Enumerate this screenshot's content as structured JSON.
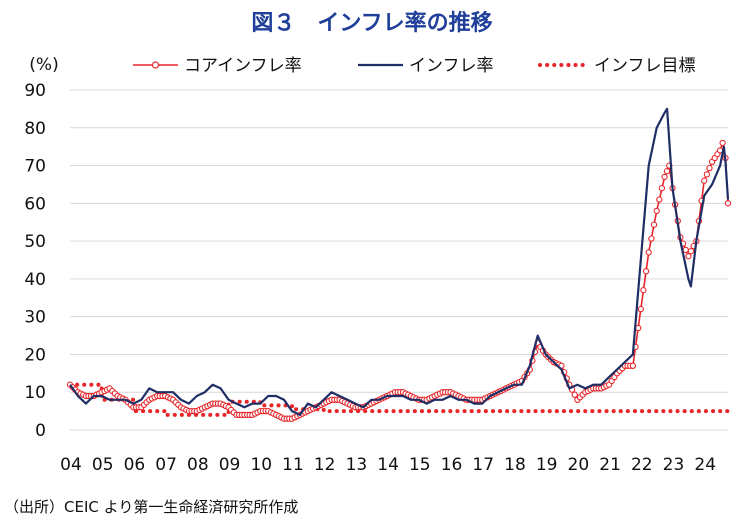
{
  "chart_data": {
    "type": "line",
    "title": "図３　インフレ率の推移",
    "ylabel": "(%)",
    "xlabel": "",
    "ylim": [
      0,
      90
    ],
    "yticks": [
      0,
      10,
      20,
      30,
      40,
      50,
      60,
      70,
      80,
      90
    ],
    "xlim": [
      2004,
      2024.75
    ],
    "xticks": [
      {
        "label": "04",
        "x": 2004
      },
      {
        "label": "05",
        "x": 2005
      },
      {
        "label": "06",
        "x": 2006
      },
      {
        "label": "07",
        "x": 2007
      },
      {
        "label": "08",
        "x": 2008
      },
      {
        "label": "09",
        "x": 2009
      },
      {
        "label": "10",
        "x": 2010
      },
      {
        "label": "11",
        "x": 2011
      },
      {
        "label": "12",
        "x": 2012
      },
      {
        "label": "13",
        "x": 2013
      },
      {
        "label": "14",
        "x": 2014
      },
      {
        "label": "15",
        "x": 2015
      },
      {
        "label": "16",
        "x": 2016
      },
      {
        "label": "17",
        "x": 2017
      },
      {
        "label": "18",
        "x": 2018
      },
      {
        "label": "19",
        "x": 2019
      },
      {
        "label": "20",
        "x": 2020
      },
      {
        "label": "21",
        "x": 2021
      },
      {
        "label": "22",
        "x": 2022
      },
      {
        "label": "23",
        "x": 2023
      },
      {
        "label": "24",
        "x": 2024
      }
    ],
    "grid": "horizontal",
    "legend_position": "top-right",
    "source": "（出所）CEIC より第一生命経済研究所作成",
    "series": [
      {
        "name": "コアインフレ率",
        "color": "#e8262a",
        "style": "line-with-circle-markers",
        "points": [
          [
            2004.0,
            12
          ],
          [
            2004.25,
            10
          ],
          [
            2004.5,
            9
          ],
          [
            2004.75,
            9
          ],
          [
            2005.0,
            10
          ],
          [
            2005.25,
            11
          ],
          [
            2005.5,
            9
          ],
          [
            2005.75,
            8
          ],
          [
            2006.0,
            6
          ],
          [
            2006.25,
            6
          ],
          [
            2006.5,
            8
          ],
          [
            2006.75,
            9
          ],
          [
            2007.0,
            9
          ],
          [
            2007.25,
            8
          ],
          [
            2007.5,
            6
          ],
          [
            2007.75,
            5
          ],
          [
            2008.0,
            5
          ],
          [
            2008.25,
            6
          ],
          [
            2008.5,
            7
          ],
          [
            2008.75,
            7
          ],
          [
            2009.0,
            6
          ],
          [
            2009.25,
            4
          ],
          [
            2009.5,
            4
          ],
          [
            2009.75,
            4
          ],
          [
            2010.0,
            5
          ],
          [
            2010.25,
            5
          ],
          [
            2010.5,
            4
          ],
          [
            2010.75,
            3
          ],
          [
            2011.0,
            3
          ],
          [
            2011.25,
            4
          ],
          [
            2011.5,
            5
          ],
          [
            2011.75,
            6
          ],
          [
            2012.0,
            7
          ],
          [
            2012.25,
            8
          ],
          [
            2012.5,
            8
          ],
          [
            2012.75,
            7
          ],
          [
            2013.0,
            6
          ],
          [
            2013.25,
            6
          ],
          [
            2013.5,
            7
          ],
          [
            2013.75,
            8
          ],
          [
            2014.0,
            9
          ],
          [
            2014.25,
            10
          ],
          [
            2014.5,
            10
          ],
          [
            2014.75,
            9
          ],
          [
            2015.0,
            8
          ],
          [
            2015.25,
            8
          ],
          [
            2015.5,
            9
          ],
          [
            2015.75,
            10
          ],
          [
            2016.0,
            10
          ],
          [
            2016.25,
            9
          ],
          [
            2016.5,
            8
          ],
          [
            2016.75,
            8
          ],
          [
            2017.0,
            8
          ],
          [
            2017.25,
            9
          ],
          [
            2017.5,
            10
          ],
          [
            2017.75,
            11
          ],
          [
            2018.0,
            12
          ],
          [
            2018.25,
            13
          ],
          [
            2018.5,
            16
          ],
          [
            2018.75,
            23
          ],
          [
            2019.0,
            20
          ],
          [
            2019.25,
            18
          ],
          [
            2019.5,
            17
          ],
          [
            2019.75,
            12
          ],
          [
            2020.0,
            8
          ],
          [
            2020.25,
            10
          ],
          [
            2020.5,
            11
          ],
          [
            2020.75,
            11
          ],
          [
            2021.0,
            12
          ],
          [
            2021.25,
            15
          ],
          [
            2021.5,
            17
          ],
          [
            2021.75,
            17
          ],
          [
            2022.0,
            32
          ],
          [
            2022.25,
            47
          ],
          [
            2022.5,
            58
          ],
          [
            2022.75,
            67
          ],
          [
            2022.9,
            70
          ],
          [
            2023.0,
            64
          ],
          [
            2023.25,
            51
          ],
          [
            2023.5,
            46
          ],
          [
            2023.75,
            50
          ],
          [
            2024.0,
            66
          ],
          [
            2024.25,
            71
          ],
          [
            2024.5,
            74
          ],
          [
            2024.58,
            76
          ],
          [
            2024.67,
            72
          ],
          [
            2024.75,
            60
          ]
        ]
      },
      {
        "name": "インフレ率",
        "color": "#1f2f66",
        "style": "line",
        "points": [
          [
            2004.0,
            12
          ],
          [
            2004.25,
            9
          ],
          [
            2004.5,
            7
          ],
          [
            2004.75,
            9
          ],
          [
            2005.0,
            9
          ],
          [
            2005.25,
            8
          ],
          [
            2005.5,
            8
          ],
          [
            2005.75,
            8
          ],
          [
            2006.0,
            7
          ],
          [
            2006.25,
            8
          ],
          [
            2006.5,
            11
          ],
          [
            2006.75,
            10
          ],
          [
            2007.0,
            10
          ],
          [
            2007.25,
            10
          ],
          [
            2007.5,
            8
          ],
          [
            2007.75,
            7
          ],
          [
            2008.0,
            9
          ],
          [
            2008.25,
            10
          ],
          [
            2008.5,
            12
          ],
          [
            2008.75,
            11
          ],
          [
            2009.0,
            8
          ],
          [
            2009.25,
            7
          ],
          [
            2009.5,
            6
          ],
          [
            2009.75,
            7
          ],
          [
            2010.0,
            7
          ],
          [
            2010.25,
            9
          ],
          [
            2010.5,
            9
          ],
          [
            2010.75,
            8
          ],
          [
            2011.0,
            5
          ],
          [
            2011.25,
            4
          ],
          [
            2011.5,
            7
          ],
          [
            2011.75,
            6
          ],
          [
            2012.0,
            8
          ],
          [
            2012.25,
            10
          ],
          [
            2012.5,
            9
          ],
          [
            2012.75,
            8
          ],
          [
            2013.0,
            7
          ],
          [
            2013.25,
            6
          ],
          [
            2013.5,
            8
          ],
          [
            2013.75,
            8
          ],
          [
            2014.0,
            9
          ],
          [
            2014.25,
            9
          ],
          [
            2014.5,
            9
          ],
          [
            2014.75,
            8
          ],
          [
            2015.0,
            8
          ],
          [
            2015.25,
            7
          ],
          [
            2015.5,
            8
          ],
          [
            2015.75,
            8
          ],
          [
            2016.0,
            9
          ],
          [
            2016.25,
            8
          ],
          [
            2016.5,
            8
          ],
          [
            2016.75,
            7
          ],
          [
            2017.0,
            7
          ],
          [
            2017.25,
            9
          ],
          [
            2017.5,
            10
          ],
          [
            2017.75,
            11
          ],
          [
            2018.0,
            12
          ],
          [
            2018.25,
            12
          ],
          [
            2018.5,
            17
          ],
          [
            2018.75,
            25
          ],
          [
            2019.0,
            20
          ],
          [
            2019.25,
            18
          ],
          [
            2019.5,
            16
          ],
          [
            2019.75,
            11
          ],
          [
            2020.0,
            12
          ],
          [
            2020.25,
            11
          ],
          [
            2020.5,
            12
          ],
          [
            2020.75,
            12
          ],
          [
            2021.0,
            14
          ],
          [
            2021.25,
            16
          ],
          [
            2021.5,
            18
          ],
          [
            2021.75,
            20
          ],
          [
            2022.0,
            45
          ],
          [
            2022.25,
            70
          ],
          [
            2022.5,
            80
          ],
          [
            2022.75,
            84
          ],
          [
            2022.83,
            85
          ],
          [
            2023.0,
            64
          ],
          [
            2023.25,
            50
          ],
          [
            2023.5,
            40
          ],
          [
            2023.58,
            38
          ],
          [
            2023.75,
            50
          ],
          [
            2024.0,
            62
          ],
          [
            2024.25,
            65
          ],
          [
            2024.5,
            70
          ],
          [
            2024.62,
            75
          ],
          [
            2024.67,
            71
          ],
          [
            2024.75,
            61
          ]
        ]
      },
      {
        "name": "インフレ目標",
        "color": "#e8262a",
        "style": "dotted",
        "points": [
          [
            2004.0,
            12
          ],
          [
            2005.0,
            12
          ],
          [
            2005.0,
            8
          ],
          [
            2006.0,
            8
          ],
          [
            2006.0,
            5
          ],
          [
            2007.0,
            5
          ],
          [
            2007.0,
            4
          ],
          [
            2009.0,
            4
          ],
          [
            2009.0,
            7.5
          ],
          [
            2010.0,
            7.5
          ],
          [
            2010.0,
            6.5
          ],
          [
            2011.0,
            6.5
          ],
          [
            2011.0,
            5.5
          ],
          [
            2012.0,
            5.5
          ],
          [
            2012.0,
            5
          ],
          [
            2024.75,
            5
          ]
        ]
      }
    ]
  }
}
